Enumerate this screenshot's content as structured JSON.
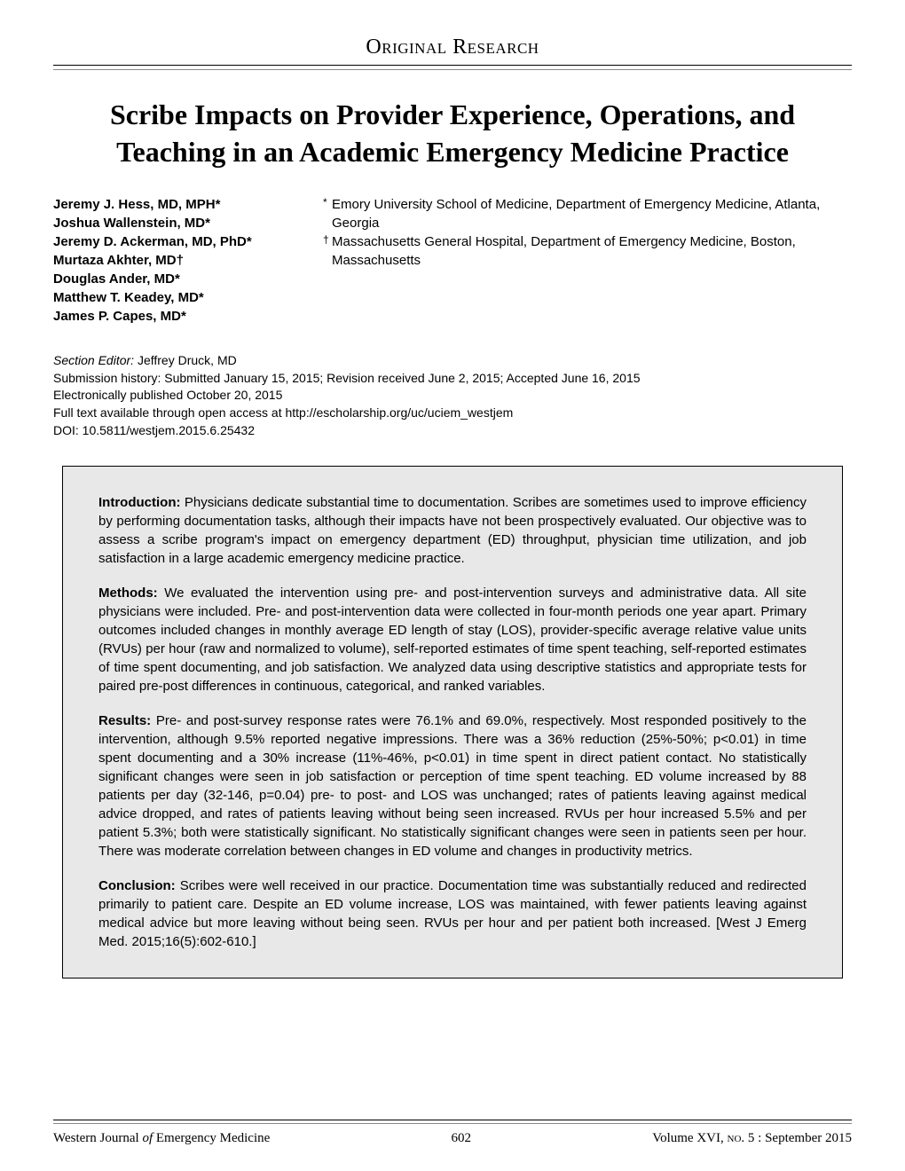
{
  "header": {
    "section_label": "Original Research"
  },
  "title": "Scribe Impacts on Provider Experience, Operations, and Teaching in an Academic Emergency Medicine Practice",
  "authors": [
    "Jeremy J. Hess, MD, MPH*",
    "Joshua Wallenstein, MD*",
    "Jeremy D. Ackerman, MD, PhD*",
    "Murtaza Akhter, MD†",
    "Douglas Ander, MD*",
    "Matthew T. Keadey, MD*",
    "James P. Capes, MD*"
  ],
  "affiliations": [
    {
      "marker": "*",
      "text": "Emory University School of Medicine, Department of Emergency Medicine, Atlanta, Georgia"
    },
    {
      "marker": "†",
      "text": "Massachusetts General Hospital, Department of Emergency Medicine, Boston, Massachusetts"
    }
  ],
  "submission": {
    "editor_label": "Section Editor:",
    "editor_name": " Jeffrey Druck, MD",
    "history": "Submission history: Submitted January 15, 2015; Revision received June 2, 2015; Accepted June 16, 2015",
    "epub": "Electronically published October 20, 2015",
    "fulltext": "Full text available through open access at http://escholarship.org/uc/uciem_westjem",
    "doi": "DOI: 10.5811/westjem.2015.6.25432"
  },
  "abstract": {
    "introduction": {
      "label": "Introduction:",
      "text": " Physicians dedicate substantial time to documentation. Scribes are sometimes used to improve efficiency by performing documentation tasks, although their impacts have not been prospectively evaluated. Our objective was to assess a scribe program's impact on emergency department (ED) throughput, physician time utilization, and job satisfaction in a large academic emergency medicine practice."
    },
    "methods": {
      "label": "Methods:",
      "text": " We evaluated the intervention using pre- and post-intervention surveys and administrative data. All site physicians were included. Pre- and post-intervention data were collected in four-month periods one year apart. Primary outcomes included changes in monthly average ED length of stay (LOS), provider-specific average relative value units (RVUs) per hour (raw and normalized to volume), self-reported estimates of time spent teaching, self-reported estimates of time spent documenting, and job satisfaction. We analyzed data using descriptive statistics and appropriate tests for paired pre-post differences in continuous, categorical, and ranked variables."
    },
    "results": {
      "label": "Results:",
      "text": " Pre- and post-survey response rates were 76.1% and 69.0%, respectively. Most responded positively to the intervention, although 9.5% reported negative impressions. There was a 36% reduction (25%-50%; p<0.01) in time spent documenting and a 30% increase (11%-46%, p<0.01) in time spent in direct patient contact. No statistically significant changes were seen in job satisfaction or perception of time spent teaching. ED volume increased by 88 patients per day (32-146, p=0.04) pre- to post- and LOS was unchanged; rates of patients leaving against medical advice dropped, and rates of patients leaving without being seen increased. RVUs per hour increased 5.5% and per patient 5.3%; both were statistically significant. No statistically significant changes were seen in patients seen per hour. There was moderate correlation between changes in ED volume and changes in productivity metrics."
    },
    "conclusion": {
      "label": "Conclusion:",
      "text": " Scribes were well received in our practice. Documentation time was substantially reduced and redirected primarily to patient care. Despite an ED volume increase, LOS was maintained, with fewer patients leaving against medical advice but more leaving without being seen. RVUs per hour and per patient both increased. [West J Emerg Med. 2015;16(5):602-610.]"
    }
  },
  "footer": {
    "journal_prefix": "Western Journal ",
    "journal_of": "of",
    "journal_suffix": " Emergency Medicine",
    "page": "602",
    "volume_prefix": "Volume XVI, ",
    "no_label": "no",
    "volume_suffix": ". 5 : September 2015"
  }
}
